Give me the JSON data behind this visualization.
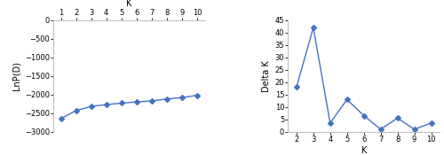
{
  "left_x": [
    1,
    2,
    3,
    4,
    5,
    6,
    7,
    8,
    9,
    10
  ],
  "left_y": [
    -2650,
    -2430,
    -2320,
    -2270,
    -2230,
    -2200,
    -2170,
    -2120,
    -2080,
    -2020
  ],
  "left_xlabel": "K",
  "left_ylabel": "LnP(D)",
  "left_ylim": [
    -3000,
    0
  ],
  "left_yticks": [
    0,
    -500,
    -1000,
    -1500,
    -2000,
    -2500,
    -3000
  ],
  "right_x": [
    2,
    3,
    4,
    5,
    6,
    7,
    8,
    9,
    10
  ],
  "right_y": [
    18,
    42,
    3.5,
    13,
    6.5,
    1,
    5.5,
    1,
    3.5
  ],
  "right_xlabel": "K",
  "right_ylabel": "Delta K",
  "right_ylim": [
    0,
    45
  ],
  "right_yticks": [
    0,
    5,
    10,
    15,
    20,
    25,
    30,
    35,
    40,
    45
  ],
  "line_color": "#4472C4",
  "marker": "D",
  "markersize": 3,
  "linewidth": 1.0,
  "bg_color": "#ffffff",
  "fontsize": 7,
  "spine_color": "#c0c0c0"
}
